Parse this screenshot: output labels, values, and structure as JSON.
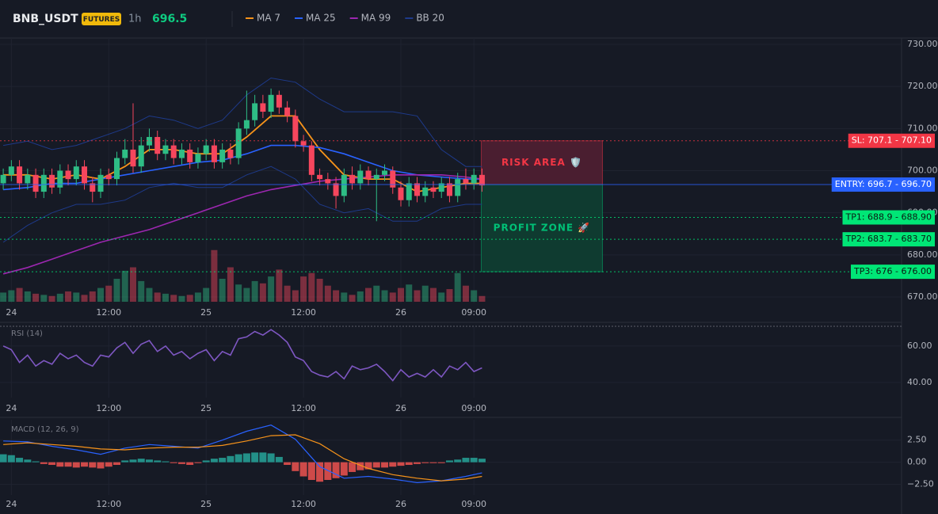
{
  "chart_data": {
    "type": "candlestick",
    "symbol": "BNB_USDT",
    "badge": "FUTURES",
    "interval": "1h",
    "last_price": 696.5,
    "xlim": [
      -1.4,
      109.7
    ],
    "xticks": [
      {
        "value": 0,
        "label": "24"
      },
      {
        "value": 12,
        "label": "12:00"
      },
      {
        "value": 24,
        "label": "25"
      },
      {
        "value": 36,
        "label": "12:00"
      },
      {
        "value": 48,
        "label": "26"
      },
      {
        "value": 57,
        "label": "09:00"
      }
    ],
    "ylim": [
      668.5,
      731.5
    ],
    "yticks": [
      {
        "value": 730,
        "label": "730.00"
      },
      {
        "value": 720,
        "label": "720.00"
      },
      {
        "value": 710,
        "label": "710.00"
      },
      {
        "value": 700,
        "label": "700.00"
      },
      {
        "value": 690,
        "label": "690.00"
      },
      {
        "value": 680,
        "label": "680.00"
      },
      {
        "value": 670,
        "label": "670.00"
      }
    ],
    "up_color": "#2ebd85",
    "down_color": "#f6465d",
    "x": [
      -1,
      0,
      1,
      2,
      3,
      4,
      5,
      6,
      7,
      8,
      9,
      10,
      11,
      12,
      13,
      14,
      15,
      16,
      17,
      18,
      19,
      20,
      21,
      22,
      23,
      24,
      25,
      26,
      27,
      28,
      29,
      30,
      31,
      32,
      33,
      34,
      35,
      36,
      37,
      38,
      39,
      40,
      41,
      42,
      43,
      44,
      45,
      46,
      47,
      48,
      49,
      50,
      51,
      52,
      53,
      54,
      55,
      56,
      57,
      58
    ],
    "open": [
      697,
      699,
      701,
      697,
      699,
      695,
      699,
      696,
      700,
      698,
      701,
      697,
      695,
      699,
      698,
      703,
      705,
      701,
      706,
      708,
      704,
      706,
      703,
      705,
      702,
      704,
      706,
      702,
      705,
      703,
      710,
      712,
      716,
      714,
      718,
      715,
      713,
      707,
      706,
      699,
      698,
      697,
      694,
      699,
      697,
      700,
      698,
      699,
      700,
      696,
      693,
      697,
      694,
      696,
      695,
      697,
      694,
      698,
      697,
      699
    ],
    "high": [
      700.5,
      702.5,
      702.5,
      700.5,
      700.5,
      700.5,
      700.5,
      701.5,
      701.5,
      702.5,
      702.5,
      698.5,
      700.5,
      700.5,
      704.5,
      707.5,
      716,
      708,
      710,
      709.5,
      707.5,
      707.5,
      706.5,
      706.5,
      705.5,
      707.5,
      707.5,
      706.5,
      706.5,
      711.5,
      719,
      718,
      718,
      719.5,
      719,
      716.5,
      714.5,
      708.5,
      707,
      700.5,
      699.5,
      698.5,
      700.5,
      701,
      701.5,
      701,
      700.5,
      701.5,
      701,
      697.5,
      698.5,
      698.5,
      697.5,
      697.5,
      698.5,
      698.5,
      699.5,
      700.5,
      700.5,
      700.5
    ],
    "low": [
      695.5,
      697.5,
      695.5,
      695.5,
      693.5,
      693.5,
      694.5,
      694.5,
      696.5,
      696.5,
      695.5,
      692.5,
      693.5,
      696.5,
      696.5,
      701.5,
      699.5,
      699.5,
      704.5,
      702.5,
      702.5,
      701.5,
      701.5,
      700.5,
      700.5,
      702.5,
      700.5,
      700.5,
      701.5,
      701.5,
      708.5,
      710.5,
      712.5,
      712.5,
      713.5,
      711.5,
      705.5,
      704.5,
      697.5,
      696.5,
      695.5,
      691,
      692.5,
      695.5,
      695.5,
      696.5,
      688,
      697.5,
      694.5,
      691.5,
      691.5,
      692.5,
      692.5,
      693.5,
      693.5,
      692.5,
      692.5,
      695.5,
      695.5,
      695
    ],
    "close": [
      699,
      701,
      697,
      699,
      695,
      699,
      696,
      700,
      698,
      701,
      697,
      695,
      699,
      698,
      703,
      705,
      701,
      706,
      708,
      704,
      706,
      703,
      705,
      702,
      704,
      706,
      702,
      705,
      703,
      710,
      712,
      716,
      714,
      718,
      715,
      713,
      707,
      706,
      699,
      698,
      697,
      694,
      699,
      697,
      700,
      698,
      699,
      700,
      696,
      693,
      697,
      694,
      696,
      695,
      697,
      694,
      698,
      697,
      699,
      696.5
    ],
    "volume": [
      8,
      10,
      12,
      9,
      7,
      6,
      5,
      7,
      9,
      8,
      6,
      9,
      12,
      14,
      20,
      27,
      30,
      18,
      12,
      8,
      7,
      6,
      5,
      6,
      8,
      12,
      45,
      20,
      30,
      15,
      12,
      18,
      16,
      22,
      28,
      14,
      10,
      22,
      25,
      20,
      14,
      10,
      8,
      6,
      9,
      12,
      14,
      10,
      8,
      12,
      15,
      10,
      14,
      12,
      8,
      11,
      25,
      14,
      10,
      5
    ],
    "lines": {
      "x": [
        -1,
        2,
        5,
        8,
        11,
        14,
        17,
        20,
        23,
        26,
        29,
        32,
        35,
        38,
        41,
        44,
        47,
        50,
        53,
        56,
        58
      ],
      "series": [
        {
          "name": "MA 7",
          "color": "#f7931a",
          "values": [
            699,
            699,
            698,
            699,
            698,
            701,
            705,
            705,
            704,
            704,
            708,
            713,
            713,
            705,
            699,
            698,
            698,
            695,
            696,
            697,
            697
          ]
        },
        {
          "name": "MA 25",
          "color": "#2962ff",
          "values": [
            695.5,
            696,
            697,
            697,
            698,
            699,
            700,
            701,
            702,
            702.5,
            704,
            706,
            706,
            705.5,
            704,
            702,
            700,
            699,
            698.5,
            698,
            698
          ]
        },
        {
          "name": "MA 99",
          "color": "#9c27b0",
          "values": [
            675.5,
            677,
            679,
            681,
            683,
            684.5,
            686,
            688,
            690,
            692,
            694,
            695.5,
            696.5,
            697.5,
            698,
            698.5,
            699,
            699,
            699,
            698.5,
            698
          ]
        },
        {
          "name": "BB 20",
          "color": "#1e3a8a",
          "upper": [
            706,
            707,
            705,
            706,
            708,
            710,
            713,
            712,
            710,
            712,
            718,
            722,
            721,
            717,
            714,
            714,
            714,
            713,
            705,
            701,
            701
          ],
          "lower": [
            683,
            687,
            690,
            692,
            692,
            693,
            696,
            697,
            696,
            696,
            699,
            701,
            698,
            692,
            690,
            691,
            688,
            688,
            691,
            692,
            692
          ]
        }
      ]
    },
    "levels": [
      {
        "value": 707.1,
        "label": "SL: 707.1 - 707.10",
        "color": "#f23645"
      },
      {
        "value": 696.7,
        "label": "ENTRY: 696.7 - 696.70",
        "color": "#2962ff"
      },
      {
        "value": 688.9,
        "label": "TP1: 688.9 - 688.90",
        "color": "#00e676"
      },
      {
        "value": 683.7,
        "label": "TP2: 683.7 - 683.70",
        "color": "#00e676"
      },
      {
        "value": 676,
        "label": "TP3: 676 - 676.00",
        "color": "#00e676"
      }
    ],
    "zones": [
      {
        "label": "RISK AREA 🛡️",
        "color": "#f23645"
      },
      {
        "label": "PROFIT ZONE 🚀",
        "color": "#00c076"
      }
    ],
    "rsi": {
      "title": "RSI (14)",
      "color": "#7e57c2",
      "ylim": [
        31.7,
        71.7
      ],
      "yticks": [
        {
          "value": 60,
          "label": "60.00"
        },
        {
          "value": 40,
          "label": "40.00"
        }
      ],
      "values": [
        60,
        58,
        51,
        55,
        49,
        52,
        50,
        56,
        53,
        55,
        51,
        49,
        55,
        54,
        59,
        62,
        56,
        61,
        63,
        57,
        60,
        55,
        57,
        53,
        56,
        58,
        52,
        57,
        55,
        64,
        65,
        68,
        66,
        69,
        66,
        62,
        54,
        52,
        46,
        44,
        43,
        46,
        42,
        49,
        47,
        48,
        50,
        46,
        41,
        47,
        43,
        45,
        43,
        47,
        43,
        49,
        47,
        51,
        46,
        48
      ]
    },
    "macd": {
      "title": "MACD (12, 26, 9)",
      "ylim": [
        -3.7,
        4.8
      ],
      "yticks": [
        {
          "value": 2.5,
          "label": "2.50"
        },
        {
          "value": 0,
          "label": "0.00"
        },
        {
          "value": -2.5,
          "label": "−2.50"
        }
      ],
      "histogram": [
        0.9,
        0.8,
        0.5,
        0.3,
        0.1,
        -0.2,
        -0.3,
        -0.5,
        -0.5,
        -0.6,
        -0.5,
        -0.6,
        -0.7,
        -0.5,
        -0.3,
        0.2,
        0.3,
        0.4,
        0.3,
        0.2,
        0.1,
        -0.1,
        -0.2,
        -0.3,
        -0.1,
        0.2,
        0.4,
        0.5,
        0.7,
        0.9,
        1.0,
        1.1,
        1.1,
        1.0,
        0.6,
        -0.3,
        -1.0,
        -1.6,
        -2.0,
        -2.2,
        -2.0,
        -1.8,
        -1.5,
        -1.1,
        -0.9,
        -0.8,
        -0.6,
        -0.6,
        -0.5,
        -0.4,
        -0.3,
        -0.2,
        -0.1,
        -0.1,
        -0.1,
        0.2,
        0.3,
        0.5,
        0.5,
        0.4
      ],
      "hist_up_color": "#26a69a",
      "hist_down_color": "#ef5350",
      "series": [
        {
          "color": "#2962ff",
          "values": [
            2.4,
            2.3,
            1.8,
            1.4,
            0.9,
            1.6,
            2.0,
            1.8,
            1.6,
            2.5,
            3.5,
            4.2,
            2.6,
            -0.5,
            -1.8,
            -1.6,
            -1.9,
            -2.3,
            -2.1,
            -1.6,
            -1.2
          ]
        },
        {
          "color": "#f7931a",
          "values": [
            2.0,
            2.2,
            2.0,
            1.8,
            1.5,
            1.4,
            1.6,
            1.7,
            1.7,
            1.9,
            2.4,
            3.0,
            3.1,
            2.1,
            0.4,
            -0.7,
            -1.4,
            -1.8,
            -2.1,
            -1.9,
            -1.6
          ]
        }
      ]
    }
  }
}
